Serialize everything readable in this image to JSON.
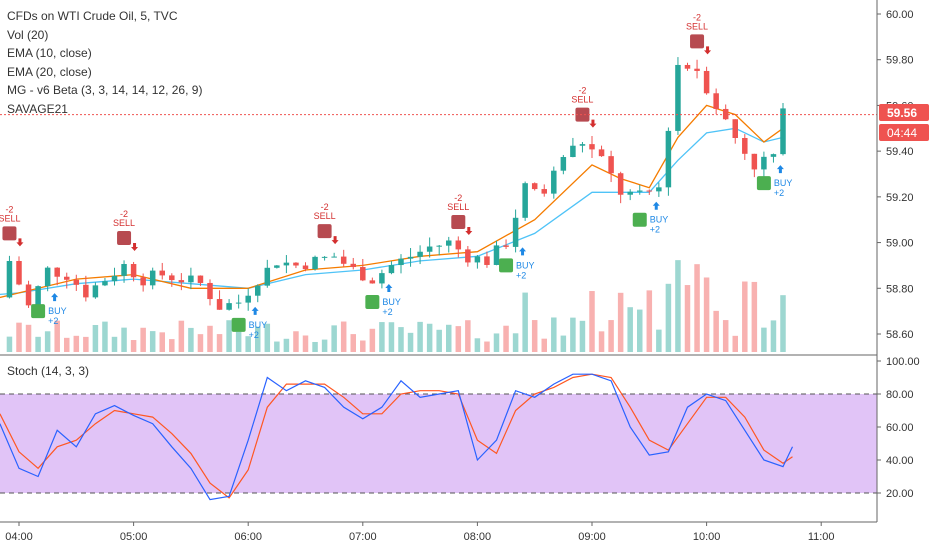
{
  "legend": {
    "title": "CFDs on WTI Crude Oil, 5, TVC",
    "lines": [
      "Vol (20)",
      "EMA (10, close)",
      "EMA (20, close)",
      "MG - v6 Beta (3, 3, 14, 14, 12, 26, 9)",
      "SAVAGE21"
    ]
  },
  "stoch_label": "Stoch (14, 3, 3)",
  "price_badge": "59.56",
  "timer_badge": "04:44",
  "price_ticks": [
    "60.00",
    "59.80",
    "59.60",
    "59.40",
    "59.20",
    "59.00",
    "58.80",
    "58.60"
  ],
  "stoch_ticks": [
    "100.00",
    "80.00",
    "60.00",
    "40.00",
    "20.00"
  ],
  "time_ticks": [
    "04:00",
    "05:00",
    "06:00",
    "07:00",
    "08:00",
    "09:00",
    "10:00",
    "11:00"
  ],
  "colors": {
    "up": "#26a69a",
    "down": "#ef5350",
    "ema10": "#f57c00",
    "ema20": "#4fc3f7",
    "stoch_k": "#2962ff",
    "stoch_d": "#ff5722",
    "stoch_band": "#e1c4f7",
    "buy_marker": "#4caf50",
    "sell_marker": "#b74a50",
    "buy_text": "#1e88e5",
    "sell_text": "#d32f2f"
  },
  "chart_data": {
    "type": "candlestick",
    "symbol": "CFDs on WTI Crude Oil",
    "interval": "5",
    "y_price_range": [
      58.55,
      60.05
    ],
    "y_stoch_range": [
      0,
      100
    ],
    "x_time_ticks": [
      "04:00",
      "05:00",
      "06:00",
      "07:00",
      "08:00",
      "09:00",
      "10:00",
      "11:00"
    ],
    "last_price": 59.56,
    "signals": [
      {
        "type": "sell",
        "label": "SELL",
        "qty": "-2",
        "near": "03:55"
      },
      {
        "type": "buy",
        "label": "BUY",
        "qty": "+2",
        "near": "04:10"
      },
      {
        "type": "sell",
        "label": "SELL",
        "qty": "-2",
        "near": "04:55"
      },
      {
        "type": "buy",
        "label": "BUY",
        "qty": "+2",
        "near": "05:55"
      },
      {
        "type": "sell",
        "label": "SELL",
        "qty": "-2",
        "near": "06:40"
      },
      {
        "type": "buy",
        "label": "BUY",
        "qty": "+2",
        "near": "07:05"
      },
      {
        "type": "sell",
        "label": "SELL",
        "qty": "-2",
        "near": "07:50"
      },
      {
        "type": "buy",
        "label": "BUY",
        "qty": "+2",
        "near": "08:15"
      },
      {
        "type": "sell",
        "label": "SELL",
        "qty": "-2",
        "near": "08:55"
      },
      {
        "type": "buy",
        "label": "BUY",
        "qty": "+2",
        "near": "09:25"
      },
      {
        "type": "sell",
        "label": "SELL",
        "qty": "-2",
        "near": "09:55"
      },
      {
        "type": "buy",
        "label": "BUY",
        "qty": "+2",
        "near": "10:30"
      }
    ],
    "close_path": [
      [
        "03:30",
        58.84
      ],
      [
        "03:40",
        58.7
      ],
      [
        "03:50",
        58.76
      ],
      [
        "03:55",
        58.92
      ],
      [
        "04:05",
        58.72
      ],
      [
        "04:15",
        58.88
      ],
      [
        "04:25",
        58.86
      ],
      [
        "04:35",
        58.78
      ],
      [
        "04:45",
        58.84
      ],
      [
        "04:55",
        58.9
      ],
      [
        "05:05",
        58.84
      ],
      [
        "05:15",
        58.86
      ],
      [
        "05:25",
        58.84
      ],
      [
        "05:35",
        58.82
      ],
      [
        "05:45",
        58.72
      ],
      [
        "05:55",
        58.74
      ],
      [
        "06:05",
        58.84
      ],
      [
        "06:15",
        58.92
      ],
      [
        "06:25",
        58.9
      ],
      [
        "06:35",
        58.92
      ],
      [
        "06:45",
        58.94
      ],
      [
        "06:55",
        58.88
      ],
      [
        "07:05",
        58.84
      ],
      [
        "07:15",
        58.9
      ],
      [
        "07:25",
        58.94
      ],
      [
        "07:35",
        58.98
      ],
      [
        "07:45",
        59.0
      ],
      [
        "07:55",
        58.94
      ],
      [
        "08:05",
        58.92
      ],
      [
        "08:15",
        59.0
      ],
      [
        "08:25",
        59.24
      ],
      [
        "08:35",
        59.22
      ],
      [
        "08:45",
        59.38
      ],
      [
        "08:55",
        59.44
      ],
      [
        "09:05",
        59.36
      ],
      [
        "09:15",
        59.22
      ],
      [
        "09:25",
        59.2
      ],
      [
        "09:35",
        59.24
      ],
      [
        "09:45",
        59.78
      ],
      [
        "09:55",
        59.76
      ],
      [
        "10:05",
        59.6
      ],
      [
        "10:15",
        59.46
      ],
      [
        "10:25",
        59.34
      ],
      [
        "10:35",
        59.38
      ],
      [
        "10:40",
        59.56
      ]
    ],
    "ema10": [
      [
        "03:30",
        58.72
      ],
      [
        "04:00",
        58.78
      ],
      [
        "04:30",
        58.84
      ],
      [
        "05:00",
        58.86
      ],
      [
        "05:30",
        58.8
      ],
      [
        "06:00",
        58.8
      ],
      [
        "06:30",
        58.88
      ],
      [
        "07:00",
        58.9
      ],
      [
        "07:30",
        58.94
      ],
      [
        "08:00",
        58.96
      ],
      [
        "08:30",
        59.1
      ],
      [
        "09:00",
        59.34
      ],
      [
        "09:15",
        59.28
      ],
      [
        "09:30",
        59.24
      ],
      [
        "09:45",
        59.46
      ],
      [
        "10:00",
        59.6
      ],
      [
        "10:15",
        59.56
      ],
      [
        "10:30",
        59.44
      ],
      [
        "10:40",
        59.5
      ]
    ],
    "ema20": [
      [
        "03:30",
        58.76
      ],
      [
        "04:00",
        58.78
      ],
      [
        "04:30",
        58.82
      ],
      [
        "05:00",
        58.84
      ],
      [
        "05:30",
        58.82
      ],
      [
        "06:00",
        58.8
      ],
      [
        "06:30",
        58.86
      ],
      [
        "07:00",
        58.88
      ],
      [
        "07:30",
        58.92
      ],
      [
        "08:00",
        58.94
      ],
      [
        "08:30",
        59.04
      ],
      [
        "09:00",
        59.22
      ],
      [
        "09:15",
        59.22
      ],
      [
        "09:30",
        59.22
      ],
      [
        "09:45",
        59.36
      ],
      [
        "10:00",
        59.48
      ],
      [
        "10:15",
        59.5
      ],
      [
        "10:30",
        59.44
      ],
      [
        "10:40",
        59.46
      ]
    ],
    "stoch_k": [
      [
        "03:50",
        62
      ],
      [
        "04:00",
        35
      ],
      [
        "04:10",
        30
      ],
      [
        "04:20",
        58
      ],
      [
        "04:30",
        48
      ],
      [
        "04:40",
        68
      ],
      [
        "04:50",
        73
      ],
      [
        "05:00",
        67
      ],
      [
        "05:10",
        62
      ],
      [
        "05:20",
        48
      ],
      [
        "05:30",
        35
      ],
      [
        "05:40",
        16
      ],
      [
        "05:50",
        18
      ],
      [
        "06:00",
        52
      ],
      [
        "06:10",
        90
      ],
      [
        "06:20",
        82
      ],
      [
        "06:30",
        88
      ],
      [
        "06:40",
        84
      ],
      [
        "06:50",
        72
      ],
      [
        "07:00",
        65
      ],
      [
        "07:10",
        72
      ],
      [
        "07:20",
        88
      ],
      [
        "07:30",
        78
      ],
      [
        "07:40",
        80
      ],
      [
        "07:50",
        82
      ],
      [
        "08:00",
        40
      ],
      [
        "08:10",
        52
      ],
      [
        "08:20",
        82
      ],
      [
        "08:30",
        78
      ],
      [
        "08:40",
        86
      ],
      [
        "08:50",
        92
      ],
      [
        "09:00",
        92
      ],
      [
        "09:10",
        88
      ],
      [
        "09:20",
        60
      ],
      [
        "09:30",
        43
      ],
      [
        "09:40",
        45
      ],
      [
        "09:50",
        72
      ],
      [
        "10:00",
        80
      ],
      [
        "10:10",
        76
      ],
      [
        "10:20",
        58
      ],
      [
        "10:30",
        40
      ],
      [
        "10:40",
        36
      ],
      [
        "10:45",
        48
      ]
    ],
    "stoch_d": [
      [
        "03:50",
        68
      ],
      [
        "04:00",
        45
      ],
      [
        "04:10",
        35
      ],
      [
        "04:20",
        48
      ],
      [
        "04:30",
        52
      ],
      [
        "04:40",
        62
      ],
      [
        "04:50",
        70
      ],
      [
        "05:00",
        68
      ],
      [
        "05:10",
        66
      ],
      [
        "05:20",
        56
      ],
      [
        "05:30",
        44
      ],
      [
        "05:40",
        26
      ],
      [
        "05:50",
        17
      ],
      [
        "06:00",
        34
      ],
      [
        "06:10",
        72
      ],
      [
        "06:20",
        86
      ],
      [
        "06:30",
        86
      ],
      [
        "06:40",
        86
      ],
      [
        "06:50",
        78
      ],
      [
        "07:00",
        68
      ],
      [
        "07:10",
        68
      ],
      [
        "07:20",
        80
      ],
      [
        "07:30",
        82
      ],
      [
        "07:40",
        82
      ],
      [
        "07:50",
        80
      ],
      [
        "08:00",
        52
      ],
      [
        "08:10",
        44
      ],
      [
        "08:20",
        70
      ],
      [
        "08:30",
        80
      ],
      [
        "08:40",
        84
      ],
      [
        "08:50",
        90
      ],
      [
        "09:00",
        92
      ],
      [
        "09:10",
        90
      ],
      [
        "09:20",
        72
      ],
      [
        "09:30",
        52
      ],
      [
        "09:40",
        46
      ],
      [
        "09:50",
        62
      ],
      [
        "10:00",
        78
      ],
      [
        "10:10",
        78
      ],
      [
        "10:20",
        66
      ],
      [
        "10:30",
        46
      ],
      [
        "10:40",
        38
      ],
      [
        "10:45",
        42
      ]
    ]
  }
}
